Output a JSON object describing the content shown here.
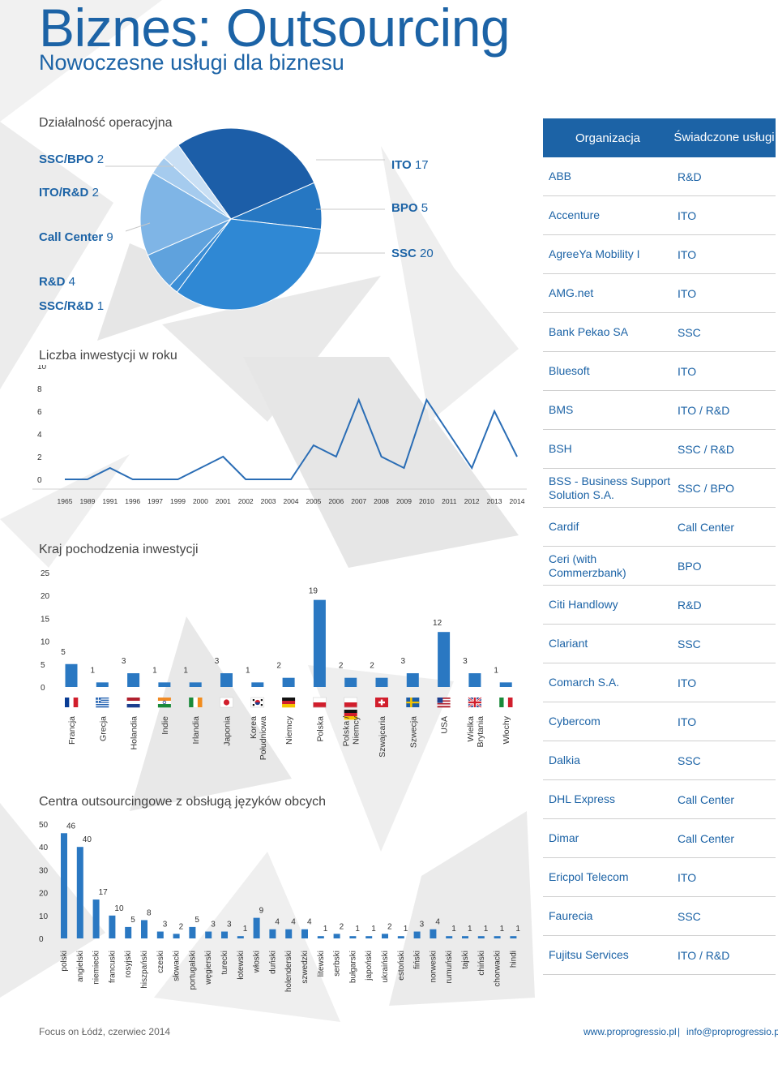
{
  "header": {
    "title": "Biznes: Outsourcing",
    "subtitle": "Nowoczesne usługi dla biznesu"
  },
  "colors": {
    "accent": "#1c63a6",
    "bar": "#2a78c2",
    "line": "#2a6db5"
  },
  "chart_data": [
    {
      "type": "pie",
      "title": "Działalność operacyjna",
      "slices": [
        {
          "label": "ITO",
          "value": 17
        },
        {
          "label": "BPO",
          "value": 5
        },
        {
          "label": "SSC",
          "value": 20
        },
        {
          "label": "SSC/R&D",
          "value": 1
        },
        {
          "label": "R&D",
          "value": 4
        },
        {
          "label": "Call Center",
          "value": 9
        },
        {
          "label": "ITO/R&D",
          "value": 2
        },
        {
          "label": "SSC/BPO",
          "value": 2
        }
      ]
    },
    {
      "type": "line",
      "title": "Liczba inwestycji w roku",
      "categories": [
        "1965",
        "1989",
        "1991",
        "1996",
        "1997",
        "1999",
        "2000",
        "2001",
        "2002",
        "2003",
        "2004",
        "2005",
        "2006",
        "2007",
        "2008",
        "2009",
        "2010",
        "2011",
        "2012",
        "2013",
        "2014"
      ],
      "values": [
        0,
        0,
        1,
        0,
        0,
        0,
        1,
        2,
        0,
        0,
        0,
        3,
        2,
        7,
        2,
        1,
        7,
        4,
        1,
        6,
        2
      ],
      "yticks": [
        0,
        2,
        4,
        6,
        8,
        10
      ],
      "ylim": [
        0,
        10
      ]
    },
    {
      "type": "bar",
      "title": "Kraj pochodzenia inwestycji",
      "categories": [
        "Francja",
        "Grecja",
        "Holandia",
        "Indie",
        "Irlandia",
        "Japonia",
        "Korea Południowa",
        "Niemcy",
        "Polska",
        "Polska / Niemcy",
        "Szwajcaria",
        "Szwecja",
        "USA",
        "Wielka Brytania",
        "Włochy"
      ],
      "values": [
        5,
        1,
        3,
        1,
        1,
        3,
        1,
        2,
        19,
        2,
        2,
        3,
        12,
        3,
        1
      ],
      "flags": [
        "fr",
        "gr",
        "nl",
        "in",
        "ie",
        "jp",
        "kr",
        "de",
        "pl",
        "pl-de",
        "ch",
        "se",
        "us",
        "gb",
        "it"
      ],
      "yticks": [
        0,
        5,
        10,
        15,
        20,
        25
      ],
      "ylim": [
        0,
        25
      ]
    },
    {
      "type": "bar",
      "title": "Centra outsourcingowe z obsługą języków obcych",
      "categories": [
        "polski",
        "angielski",
        "niemiecki",
        "francuski",
        "rosyjski",
        "hiszpański",
        "czeski",
        "słowacki",
        "portugalski",
        "węgierski",
        "turecki",
        "łotewski",
        "włoski",
        "duński",
        "holenderski",
        "szwedzki",
        "litewski",
        "serbski",
        "bułgarski",
        "japoński",
        "ukraiński",
        "estoński",
        "fiński",
        "norweski",
        "rumuński",
        "tajski",
        "chiński",
        "chorwacki",
        "hindi"
      ],
      "values": [
        46,
        40,
        17,
        10,
        5,
        8,
        3,
        2,
        5,
        3,
        3,
        1,
        9,
        4,
        4,
        4,
        1,
        2,
        1,
        1,
        2,
        1,
        3,
        4,
        1,
        1,
        1,
        1,
        1
      ],
      "yticks": [
        0,
        10,
        20,
        30,
        40,
        50
      ],
      "ylim": [
        0,
        50
      ]
    }
  ],
  "pie_legend": {
    "left": [
      {
        "label": "SSC/BPO",
        "num": "2"
      },
      {
        "label": "ITO/R&D",
        "num": "2"
      },
      {
        "label": "Call Center",
        "num": "9"
      },
      {
        "label": "R&D",
        "num": "4"
      },
      {
        "label": "SSC/R&D",
        "num": "1"
      }
    ],
    "right": [
      {
        "label": "ITO",
        "num": "17"
      },
      {
        "label": "BPO",
        "num": "5"
      },
      {
        "label": "SSC",
        "num": "20"
      }
    ]
  },
  "org_table": {
    "header": {
      "col1": "Organizacja",
      "col2": "Świadczone usługi"
    },
    "rows": [
      {
        "org": "ABB",
        "service": "R&D"
      },
      {
        "org": "Accenture",
        "service": "ITO"
      },
      {
        "org": "AgreeYa Mobility I",
        "service": "ITO"
      },
      {
        "org": "AMG.net",
        "service": "ITO"
      },
      {
        "org": "Bank Pekao SA",
        "service": "SSC"
      },
      {
        "org": "Bluesoft",
        "service": "ITO"
      },
      {
        "org": "BMS",
        "service": "ITO / R&D"
      },
      {
        "org": "BSH",
        "service": "SSC / R&D"
      },
      {
        "org": "BSS - Business Support Solution S.A.",
        "service": "SSC / BPO"
      },
      {
        "org": "Cardif",
        "service": "Call Center"
      },
      {
        "org": "Ceri (with Commerzbank)",
        "service": "BPO"
      },
      {
        "org": "Citi Handlowy",
        "service": "R&D"
      },
      {
        "org": "Clariant",
        "service": "SSC"
      },
      {
        "org": "Comarch S.A.",
        "service": "ITO"
      },
      {
        "org": "Cybercom",
        "service": "ITO"
      },
      {
        "org": "Dalkia",
        "service": "SSC"
      },
      {
        "org": "DHL Express",
        "service": "Call Center"
      },
      {
        "org": "Dimar",
        "service": "Call Center"
      },
      {
        "org": "Ericpol Telecom",
        "service": "ITO"
      },
      {
        "org": "Faurecia",
        "service": "SSC"
      },
      {
        "org": "Fujitsu Services",
        "service": "ITO / R&D"
      }
    ]
  },
  "footer": {
    "left": "Focus on Łódź, czerwiec 2014",
    "link1": "www.proprogressio.pl",
    "separator": "|",
    "link2": "info@proprogressio.pl"
  }
}
